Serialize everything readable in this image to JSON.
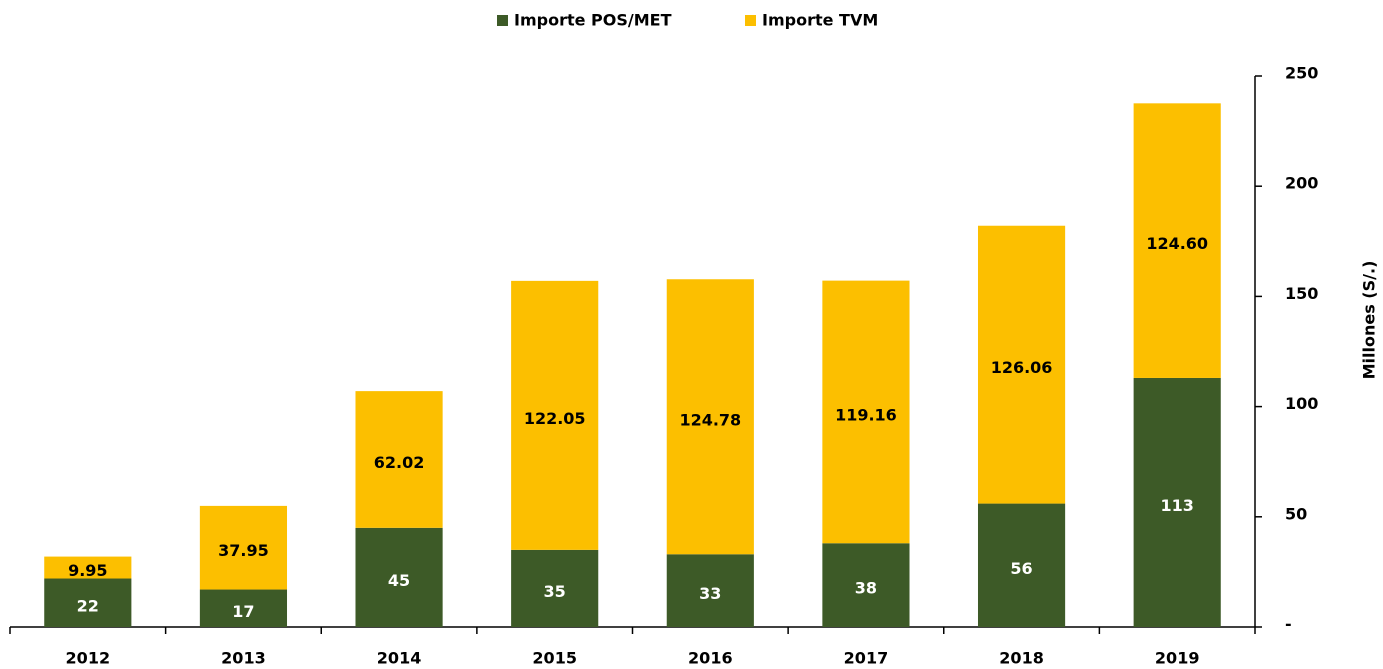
{
  "chart_data": {
    "type": "stacked_bar",
    "categories": [
      "2012",
      "2013",
      "2014",
      "2015",
      "2016",
      "2017",
      "2018",
      "2019"
    ],
    "series": [
      {
        "name": "Importe POS/MET",
        "color": "#3d5a27",
        "values": [
          22,
          17,
          45,
          35,
          33,
          38,
          56,
          113
        ]
      },
      {
        "name": "Importe TVM",
        "color": "#fcbf00",
        "values": [
          9.95,
          37.95,
          62.02,
          122.05,
          124.78,
          119.16,
          126.06,
          124.6
        ],
        "value_labels": [
          "9.95",
          "37.95",
          "62.02",
          "122.05",
          "124.78",
          "119.16",
          "126.06",
          "124.60"
        ]
      }
    ],
    "y_axis_label": "Millones (S/.)",
    "ylim": [
      0,
      250
    ],
    "yticks": [
      {
        "value": 0,
        "label": "-"
      },
      50,
      100,
      150,
      200,
      250
    ],
    "y_axis_side": "right",
    "legend": "top"
  }
}
